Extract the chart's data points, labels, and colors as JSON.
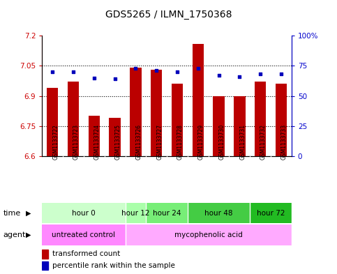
{
  "title": "GDS5265 / ILMN_1750368",
  "samples": [
    "GSM1133722",
    "GSM1133723",
    "GSM1133724",
    "GSM1133725",
    "GSM1133726",
    "GSM1133727",
    "GSM1133728",
    "GSM1133729",
    "GSM1133730",
    "GSM1133731",
    "GSM1133732",
    "GSM1133733"
  ],
  "transformed_counts": [
    6.94,
    6.97,
    6.8,
    6.79,
    7.04,
    7.03,
    6.96,
    7.16,
    6.9,
    6.9,
    6.97,
    6.96
  ],
  "percentile_ranks": [
    70,
    70,
    65,
    64,
    73,
    71,
    70,
    73,
    67,
    66,
    68,
    68
  ],
  "ylim_left": [
    6.6,
    7.2
  ],
  "ylim_right": [
    0,
    100
  ],
  "yticks_left": [
    6.6,
    6.75,
    6.9,
    7.05,
    7.2
  ],
  "yticks_right": [
    0,
    25,
    50,
    75,
    100
  ],
  "ytick_labels_left": [
    "6.6",
    "6.75",
    "6.9",
    "7.05",
    "7.2"
  ],
  "ytick_labels_right": [
    "0",
    "25",
    "50",
    "75",
    "100%"
  ],
  "hlines": [
    6.75,
    6.9,
    7.05
  ],
  "bar_color": "#bb0000",
  "dot_color": "#0000bb",
  "bar_bottom": 6.6,
  "time_groups": [
    {
      "label": "hour 0",
      "start": 0,
      "end": 3,
      "color": "#ccffcc"
    },
    {
      "label": "hour 12",
      "start": 4,
      "end": 4,
      "color": "#aaffaa"
    },
    {
      "label": "hour 24",
      "start": 5,
      "end": 6,
      "color": "#77ee77"
    },
    {
      "label": "hour 48",
      "start": 7,
      "end": 9,
      "color": "#44cc44"
    },
    {
      "label": "hour 72",
      "start": 10,
      "end": 11,
      "color": "#22bb22"
    }
  ],
  "agent_groups": [
    {
      "label": "untreated control",
      "start": 0,
      "end": 3,
      "color": "#ff88ff"
    },
    {
      "label": "mycophenolic acid",
      "start": 4,
      "end": 11,
      "color": "#ffaaff"
    }
  ],
  "legend_bar_label": "transformed count",
  "legend_dot_label": "percentile rank within the sample",
  "xlabel_time": "time",
  "xlabel_agent": "agent",
  "bg_color": "#ffffff",
  "label_area_color": "#c8c8c8",
  "title_fontsize": 10,
  "bar_fontsize": 5.5,
  "row_fontsize": 7.5,
  "legend_fontsize": 7.5
}
